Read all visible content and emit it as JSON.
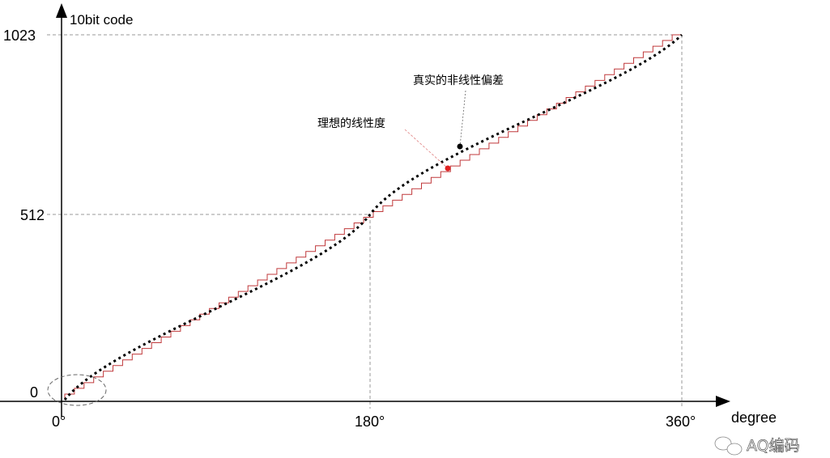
{
  "y_axis": {
    "label": "10bit code",
    "ticks": [
      "0",
      "512",
      "1023"
    ]
  },
  "x_axis": {
    "label": "degree",
    "ticks": [
      "0°",
      "180°",
      "360°"
    ]
  },
  "annotations": {
    "nonlinear": "真实的非线性偏差",
    "ideal": "理想的线性度"
  },
  "watermark": "AQ编码",
  "colors": {
    "staircase": "#c0393b",
    "curve": "#000000",
    "ideal_dot": "#e02020",
    "grid": "#999999"
  }
}
